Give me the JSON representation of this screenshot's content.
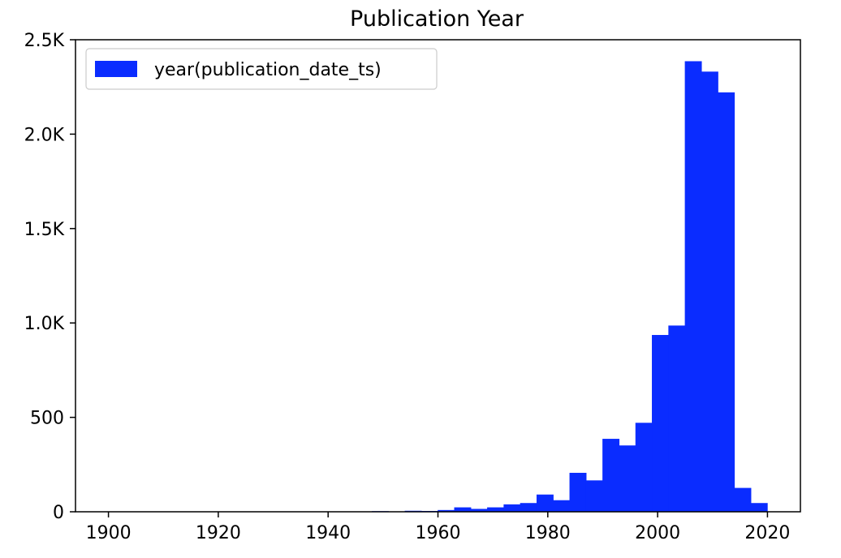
{
  "chart_data": {
    "type": "bar",
    "title": "Publication Year",
    "xlabel": "",
    "ylabel": "",
    "bin_width": 3,
    "xlim": [
      1894,
      2026
    ],
    "ylim": [
      0,
      2500
    ],
    "x_ticks": [
      {
        "value": 1900,
        "label": "1900"
      },
      {
        "value": 1920,
        "label": "1920"
      },
      {
        "value": 1940,
        "label": "1940"
      },
      {
        "value": 1960,
        "label": "1960"
      },
      {
        "value": 1980,
        "label": "1980"
      },
      {
        "value": 2000,
        "label": "2000"
      },
      {
        "value": 2020,
        "label": "2020"
      }
    ],
    "y_ticks": [
      {
        "value": 0,
        "label": "0"
      },
      {
        "value": 500,
        "label": "500"
      },
      {
        "value": 1000,
        "label": "1.0K"
      },
      {
        "value": 1500,
        "label": "1.5K"
      },
      {
        "value": 2000,
        "label": "2.0K"
      },
      {
        "value": 2500,
        "label": "2.5K"
      }
    ],
    "legend": {
      "position": "top-left"
    },
    "grid": false,
    "series": [
      {
        "name": "year(publication_date_ts)",
        "color": "#0a2cff",
        "bins": [
          {
            "x0": 1900,
            "x1": 1903,
            "value": 0
          },
          {
            "x0": 1903,
            "x1": 1906,
            "value": 0
          },
          {
            "x0": 1906,
            "x1": 1909,
            "value": 0
          },
          {
            "x0": 1909,
            "x1": 1912,
            "value": 0
          },
          {
            "x0": 1912,
            "x1": 1915,
            "value": 0
          },
          {
            "x0": 1915,
            "x1": 1918,
            "value": 0
          },
          {
            "x0": 1918,
            "x1": 1921,
            "value": 0
          },
          {
            "x0": 1921,
            "x1": 1924,
            "value": 0
          },
          {
            "x0": 1924,
            "x1": 1927,
            "value": 0
          },
          {
            "x0": 1927,
            "x1": 1930,
            "value": 0
          },
          {
            "x0": 1930,
            "x1": 1933,
            "value": 0
          },
          {
            "x0": 1933,
            "x1": 1936,
            "value": 0
          },
          {
            "x0": 1936,
            "x1": 1939,
            "value": 0
          },
          {
            "x0": 1939,
            "x1": 1942,
            "value": 0
          },
          {
            "x0": 1942,
            "x1": 1945,
            "value": 0
          },
          {
            "x0": 1945,
            "x1": 1948,
            "value": 0
          },
          {
            "x0": 1948,
            "x1": 1951,
            "value": 2
          },
          {
            "x0": 1951,
            "x1": 1954,
            "value": 0
          },
          {
            "x0": 1954,
            "x1": 1957,
            "value": 4
          },
          {
            "x0": 1957,
            "x1": 1960,
            "value": 3
          },
          {
            "x0": 1960,
            "x1": 1963,
            "value": 8
          },
          {
            "x0": 1963,
            "x1": 1966,
            "value": 22
          },
          {
            "x0": 1966,
            "x1": 1969,
            "value": 14
          },
          {
            "x0": 1969,
            "x1": 1972,
            "value": 22
          },
          {
            "x0": 1972,
            "x1": 1975,
            "value": 38
          },
          {
            "x0": 1975,
            "x1": 1978,
            "value": 45
          },
          {
            "x0": 1978,
            "x1": 1981,
            "value": 90
          },
          {
            "x0": 1981,
            "x1": 1984,
            "value": 60
          },
          {
            "x0": 1984,
            "x1": 1987,
            "value": 205
          },
          {
            "x0": 1987,
            "x1": 1990,
            "value": 165
          },
          {
            "x0": 1990,
            "x1": 1993,
            "value": 385
          },
          {
            "x0": 1993,
            "x1": 1996,
            "value": 350
          },
          {
            "x0": 1996,
            "x1": 1999,
            "value": 470
          },
          {
            "x0": 1999,
            "x1": 2002,
            "value": 935
          },
          {
            "x0": 2002,
            "x1": 2005,
            "value": 985
          },
          {
            "x0": 2005,
            "x1": 2008,
            "value": 2385
          },
          {
            "x0": 2008,
            "x1": 2011,
            "value": 2330
          },
          {
            "x0": 2011,
            "x1": 2014,
            "value": 2220
          },
          {
            "x0": 2014,
            "x1": 2017,
            "value": 125
          },
          {
            "x0": 2017,
            "x1": 2020,
            "value": 45
          }
        ]
      }
    ]
  }
}
